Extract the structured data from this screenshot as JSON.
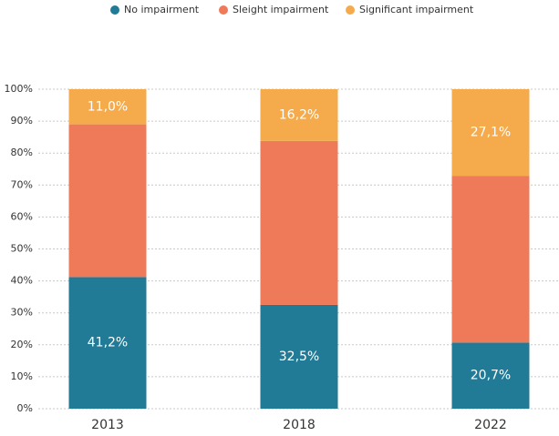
{
  "chart_data": {
    "type": "stacked_bar",
    "categories": [
      "2013",
      "2018",
      "2022"
    ],
    "series": [
      {
        "name": "No impairment",
        "color": "#217a96",
        "values": [
          41.2,
          32.5,
          20.7
        ],
        "value_labels": [
          "41,2%",
          "32,5%",
          "20,7%"
        ]
      },
      {
        "name": "Sleight impairment",
        "color": "#ef7a5a",
        "values": [
          47.8,
          51.3,
          52.2
        ]
      },
      {
        "name": "Significant impairment",
        "color": "#f5ab4c",
        "values": [
          11.0,
          16.2,
          27.1
        ],
        "value_labels": [
          "11,0%",
          "16,2%",
          "27,1%"
        ]
      }
    ],
    "ylim": [
      0,
      100
    ],
    "yticks": [
      {
        "value": 0,
        "label": "0%"
      },
      {
        "value": 10,
        "label": "10%"
      },
      {
        "value": 20,
        "label": "20%"
      },
      {
        "value": 30,
        "label": "30%"
      },
      {
        "value": 40,
        "label": "40%"
      },
      {
        "value": 50,
        "label": "50%"
      },
      {
        "value": 60,
        "label": "60%"
      },
      {
        "value": 70,
        "label": "70%"
      },
      {
        "value": 80,
        "label": "80%"
      },
      {
        "value": 90,
        "label": "90%"
      },
      {
        "value": 100,
        "label": "100%"
      }
    ],
    "grid": true,
    "legend": "top"
  }
}
